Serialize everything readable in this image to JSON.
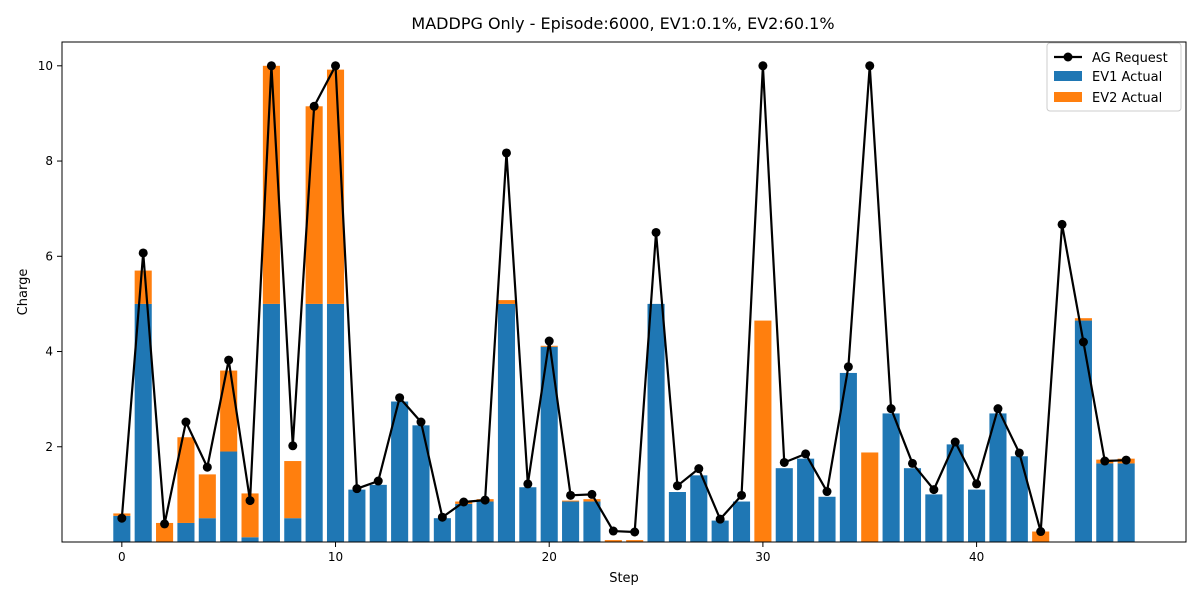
{
  "chart_data": {
    "type": "bar",
    "title": "MADDPG Only - Episode:6000, EV1:0.1%, EV2:60.1%",
    "xlabel": "Step",
    "ylabel": "Charge",
    "xlim": [
      -2.8,
      49.8
    ],
    "ylim": [
      0,
      10.5
    ],
    "xticks": [
      0,
      10,
      20,
      30,
      40
    ],
    "yticks": [
      2,
      4,
      6,
      8,
      10
    ],
    "legend_position": "top-right",
    "grid": false,
    "x": [
      0,
      1,
      2,
      3,
      4,
      5,
      6,
      7,
      8,
      9,
      10,
      11,
      12,
      13,
      14,
      15,
      16,
      17,
      18,
      19,
      20,
      21,
      22,
      23,
      24,
      25,
      26,
      27,
      28,
      29,
      30,
      31,
      32,
      33,
      34,
      35,
      36,
      37,
      38,
      39,
      40,
      41,
      42,
      43,
      44,
      45,
      46,
      47
    ],
    "series": [
      {
        "name": "EV1 Actual",
        "kind": "bar",
        "color": "#1f77b4",
        "values": [
          0.55,
          5.0,
          0.0,
          0.4,
          0.5,
          1.9,
          0.1,
          5.0,
          0.5,
          5.0,
          5.0,
          1.1,
          1.2,
          2.95,
          2.45,
          0.5,
          0.8,
          0.85,
          5.0,
          1.15,
          4.1,
          0.85,
          0.85,
          0.0,
          0.0,
          5.0,
          1.05,
          1.4,
          0.45,
          0.85,
          0.0,
          1.55,
          1.75,
          0.95,
          3.55,
          0.0,
          2.7,
          1.55,
          1.0,
          2.05,
          1.1,
          2.7,
          1.8,
          0.0,
          0.0,
          4.65,
          1.65,
          1.65
        ]
      },
      {
        "name": "EV2 Actual",
        "kind": "bar_stacked",
        "color": "#ff7f0e",
        "values": [
          0.05,
          0.7,
          0.4,
          1.8,
          0.92,
          1.7,
          0.92,
          5.0,
          1.2,
          4.15,
          4.92,
          0.0,
          0.0,
          0.0,
          0.0,
          0.0,
          0.05,
          0.05,
          0.08,
          0.0,
          0.02,
          0.02,
          0.05,
          0.04,
          0.04,
          0.0,
          0.0,
          0.0,
          0.0,
          0.0,
          4.65,
          0.0,
          0.0,
          0.0,
          0.0,
          1.88,
          0.0,
          0.0,
          0.0,
          0.0,
          0.0,
          0.0,
          0.0,
          0.22,
          0.0,
          0.05,
          0.08,
          0.1
        ]
      },
      {
        "name": "AG Request",
        "kind": "line",
        "color": "#000000",
        "values": [
          0.5,
          6.07,
          0.38,
          2.52,
          1.57,
          3.82,
          0.87,
          10.0,
          2.02,
          9.15,
          10.0,
          1.12,
          1.28,
          3.03,
          2.52,
          0.52,
          0.84,
          0.88,
          8.17,
          1.22,
          4.22,
          0.98,
          1.0,
          0.23,
          0.21,
          6.5,
          1.18,
          1.54,
          0.48,
          0.98,
          10.0,
          1.67,
          1.85,
          1.06,
          3.68,
          10.0,
          2.8,
          1.65,
          1.1,
          2.1,
          1.22,
          2.8,
          1.87,
          0.22,
          6.67,
          4.2,
          1.7,
          1.72
        ]
      }
    ],
    "legend": [
      "AG Request",
      "EV1 Actual",
      "EV2 Actual"
    ]
  }
}
